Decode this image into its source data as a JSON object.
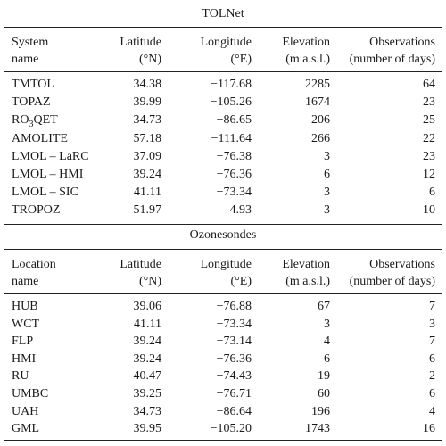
{
  "tolnet": {
    "title": "TOLNet",
    "headers": {
      "c1": [
        "System",
        "name"
      ],
      "c2": [
        "Latitude",
        "(°N)"
      ],
      "c3": [
        "Longitude",
        "(°E)"
      ],
      "c4": [
        "Elevation",
        "(m a.s.l.)"
      ],
      "c5": [
        "Observations",
        "(number of days)"
      ]
    },
    "rows": [
      [
        "TMTOL",
        "34.38",
        "−117.68",
        "2285",
        "64"
      ],
      [
        "TOPAZ",
        "39.99",
        "−105.26",
        "1674",
        "23"
      ],
      [
        "RO3QET",
        "34.73",
        "−86.65",
        "206",
        "25"
      ],
      [
        "AMOLITE",
        "57.18",
        "−111.64",
        "266",
        "22"
      ],
      [
        "LMOL – LaRC",
        "37.09",
        "−76.38",
        "3",
        "23"
      ],
      [
        "LMOL – HMI",
        "39.24",
        "−76.36",
        "6",
        "12"
      ],
      [
        "LMOL – SIC",
        "41.11",
        "−73.34",
        "3",
        "6"
      ],
      [
        "TROPOZ",
        "51.97",
        "4.93",
        "3",
        "10"
      ]
    ]
  },
  "ozonesondes": {
    "title": "Ozonesondes",
    "headers": {
      "c1": [
        "Location",
        "name"
      ],
      "c2": [
        "Latitude",
        "(°N)"
      ],
      "c3": [
        "Longitude",
        "(°E)"
      ],
      "c4": [
        "Elevation",
        "(m a.s.l.)"
      ],
      "c5": [
        "Observations",
        "(number of days)"
      ]
    },
    "rows": [
      [
        "HUB",
        "39.06",
        "−76.88",
        "67",
        "7"
      ],
      [
        "WCT",
        "41.11",
        "−73.34",
        "3",
        "3"
      ],
      [
        "FLP",
        "39.24",
        "−73.14",
        "4",
        "7"
      ],
      [
        "HMI",
        "39.24",
        "−76.36",
        "6",
        "6"
      ],
      [
        "RU",
        "40.47",
        "−74.43",
        "19",
        "2"
      ],
      [
        "UMBC",
        "39.25",
        "−76.71",
        "60",
        "6"
      ],
      [
        "UAH",
        "34.73",
        "−86.64",
        "196",
        "4"
      ],
      [
        "GML",
        "39.95",
        "−105.20",
        "1743",
        "16"
      ]
    ]
  }
}
